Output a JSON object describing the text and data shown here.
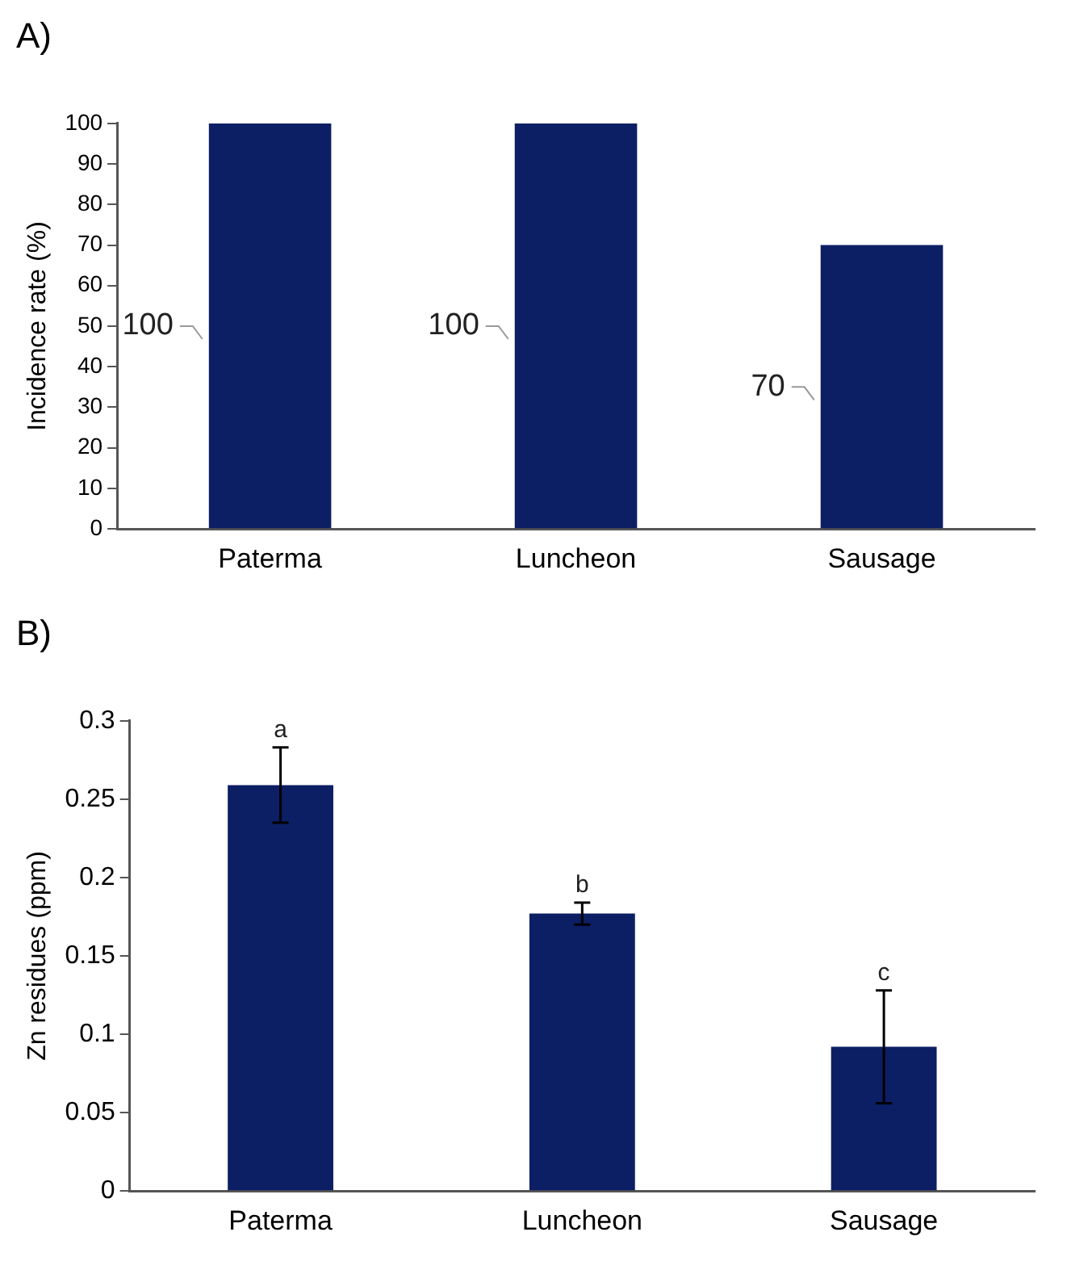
{
  "chart_data": [
    {
      "type": "bar",
      "title": "A)",
      "ylabel": "Incidence rate (%)",
      "categories": [
        "Paterma",
        "Luncheon",
        "Sausage"
      ],
      "values": [
        100,
        100,
        70
      ],
      "color": "#0c1f64",
      "ylim": [
        0,
        100
      ],
      "yticks": [
        0,
        10,
        20,
        30,
        40,
        50,
        60,
        70,
        80,
        90,
        100
      ],
      "grid": false,
      "legend": false,
      "data_labels": true
    },
    {
      "type": "bar",
      "title": "B)",
      "ylabel": "Zn residues (ppm)",
      "categories": [
        "Paterma",
        "Luncheon",
        "Sausage"
      ],
      "values": [
        0.259,
        0.177,
        0.092
      ],
      "errors": [
        0.024,
        0.007,
        0.036
      ],
      "color": "#0c1f64",
      "ylim": [
        0,
        0.3
      ],
      "yticks": [
        0,
        0.05,
        0.1,
        0.15,
        0.2,
        0.25,
        0.3
      ],
      "grid": false,
      "legend": false,
      "annotations": [
        "a",
        "b",
        "c"
      ]
    }
  ]
}
